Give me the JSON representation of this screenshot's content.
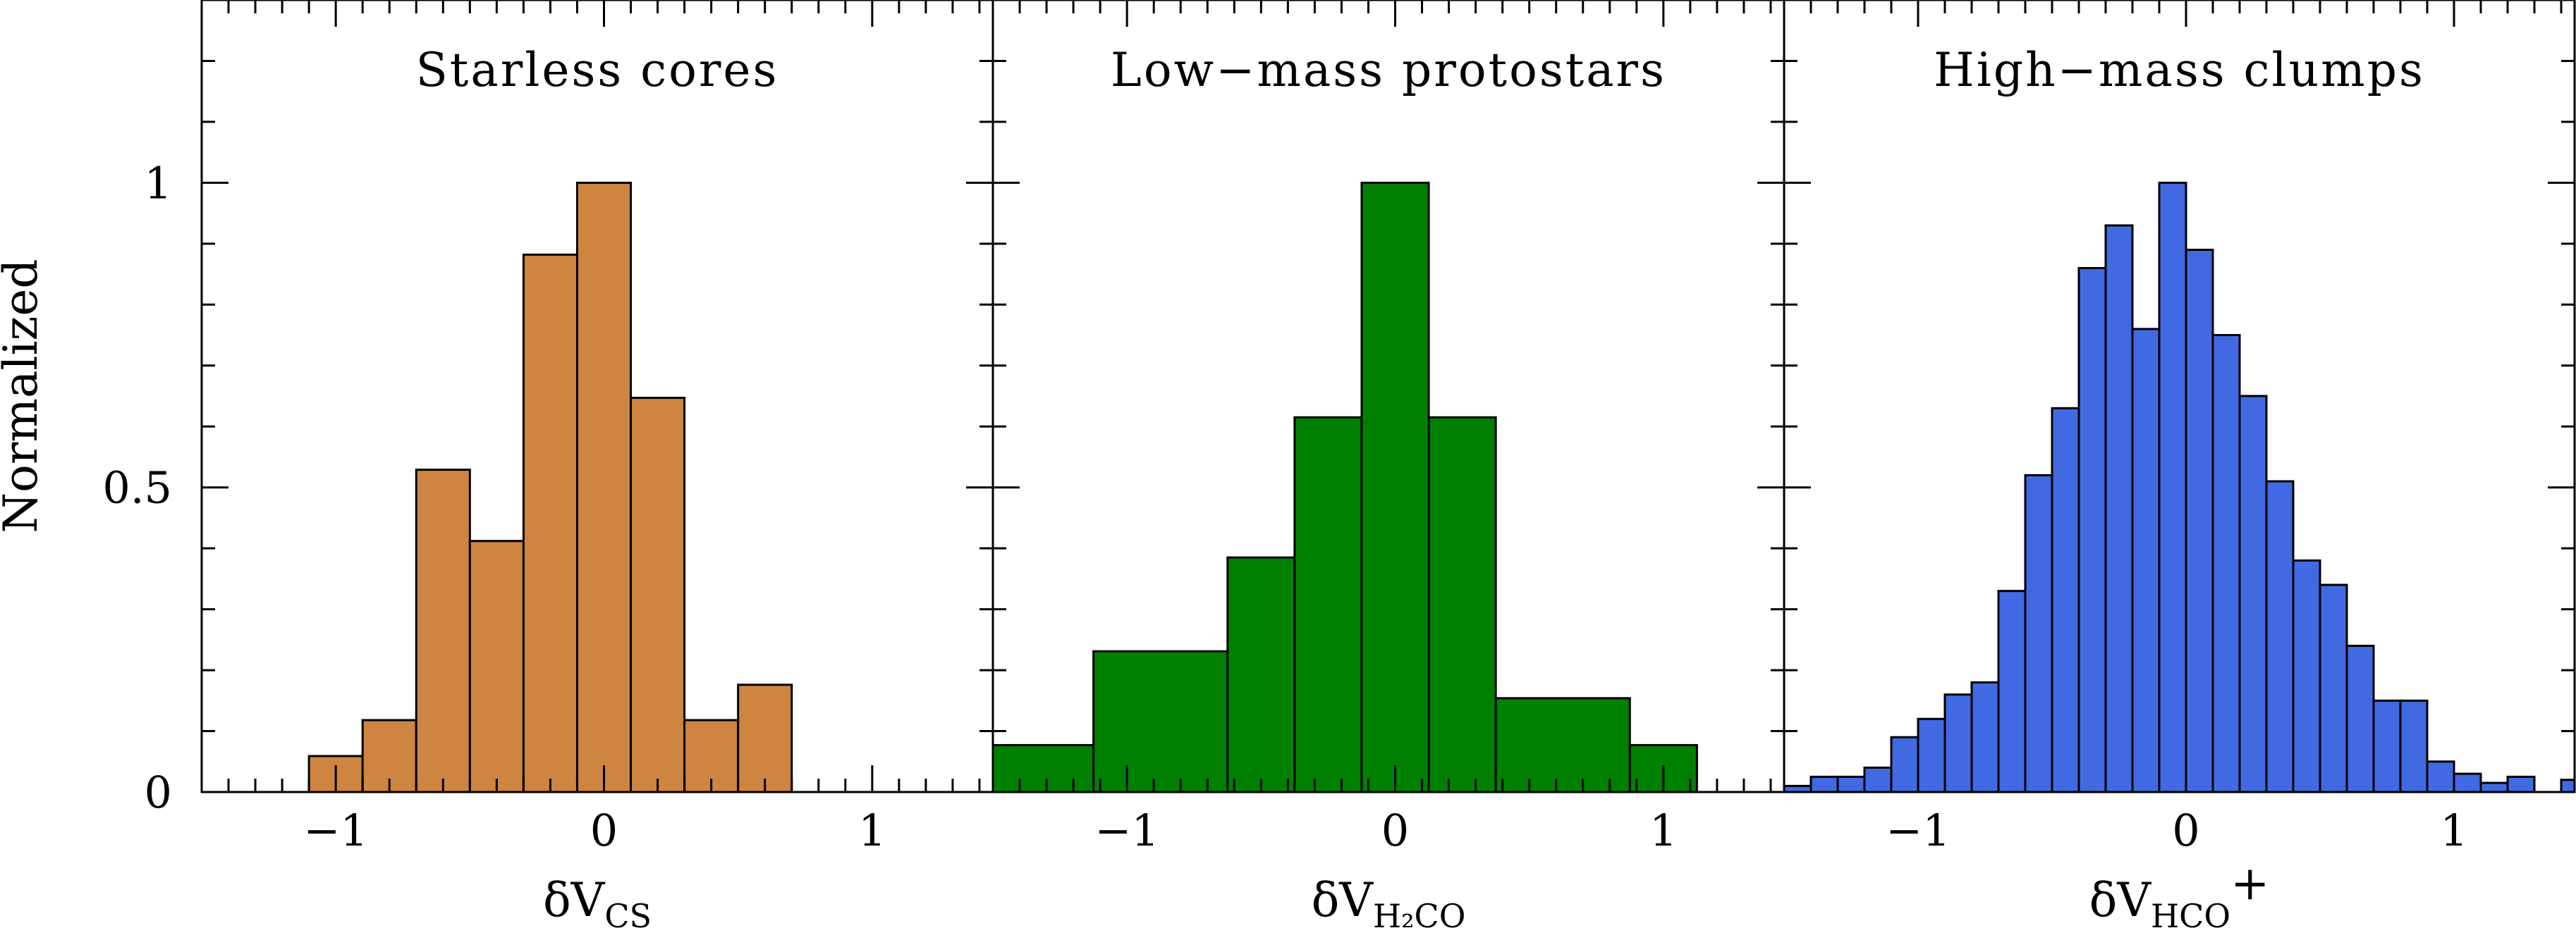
{
  "chart_data": [
    {
      "type": "bar",
      "title": "Starless cores",
      "xlabel": "δV_CS",
      "xlabel_main": "δV",
      "xlabel_sub": "CS",
      "xlabel_sup": "",
      "ylabel": "Normalized",
      "color": "#CD853F",
      "xlim": [
        -1.5,
        1.45
      ],
      "ylim": [
        0,
        1.3
      ],
      "xticks": [
        -1,
        0,
        1
      ],
      "xtick_labels": [
        "−1",
        "0",
        "1"
      ],
      "yticks": [
        0,
        0.5,
        1
      ],
      "ytick_labels": [
        "0",
        "0.5",
        "1"
      ],
      "bin_edges": [
        -1.1,
        -0.9,
        -0.7,
        -0.5,
        -0.3,
        -0.1,
        0.1,
        0.3,
        0.5,
        0.7
      ],
      "values": [
        0.059,
        0.118,
        0.529,
        0.412,
        0.882,
        1.0,
        0.647,
        0.118,
        0.176
      ]
    },
    {
      "type": "bar",
      "title": "Low−mass protostars",
      "xlabel": "δV_H2CO",
      "xlabel_main": "δV",
      "xlabel_sub": "H₂CO",
      "xlabel_sup": "",
      "color": "#008000",
      "xlim": [
        -1.5,
        1.45
      ],
      "ylim": [
        0,
        1.3
      ],
      "xticks": [
        -1,
        0,
        1
      ],
      "xtick_labels": [
        "−1",
        "0",
        "1"
      ],
      "yticks": [
        0,
        0.5,
        1
      ],
      "bin_edges": [
        -1.625,
        -1.125,
        -0.625,
        -0.375,
        -0.125,
        0.125,
        0.375,
        0.875,
        1.125
      ],
      "values": [
        0.077,
        0.231,
        0.385,
        0.615,
        1.0,
        0.615,
        0.154,
        0.077
      ]
    },
    {
      "type": "bar",
      "title": "High−mass clumps",
      "xlabel": "δV_HCO+",
      "xlabel_main": "δV",
      "xlabel_sub": "HCO",
      "xlabel_sup": "+",
      "color": "#4169E1",
      "xlim": [
        -1.5,
        1.45
      ],
      "ylim": [
        0,
        1.3
      ],
      "xticks": [
        -1,
        0,
        1
      ],
      "xtick_labels": [
        "−1",
        "0",
        "1"
      ],
      "yticks": [
        0,
        0.5,
        1
      ],
      "bin_edges": [
        -1.5,
        -1.4,
        -1.3,
        -1.2,
        -1.1,
        -1.0,
        -0.9,
        -0.8,
        -0.7,
        -0.6,
        -0.5,
        -0.4,
        -0.3,
        -0.2,
        -0.1,
        0.0,
        0.1,
        0.2,
        0.3,
        0.4,
        0.5,
        0.6,
        0.7,
        0.8,
        0.9,
        1.0,
        1.1,
        1.2,
        1.3,
        1.4,
        1.5
      ],
      "values": [
        0.01,
        0.025,
        0.025,
        0.04,
        0.09,
        0.12,
        0.16,
        0.18,
        0.33,
        0.52,
        0.63,
        0.86,
        0.93,
        0.76,
        1.0,
        0.89,
        0.75,
        0.65,
        0.51,
        0.38,
        0.34,
        0.24,
        0.15,
        0.15,
        0.05,
        0.03,
        0.015,
        0.025,
        0.0,
        0.02
      ]
    }
  ]
}
